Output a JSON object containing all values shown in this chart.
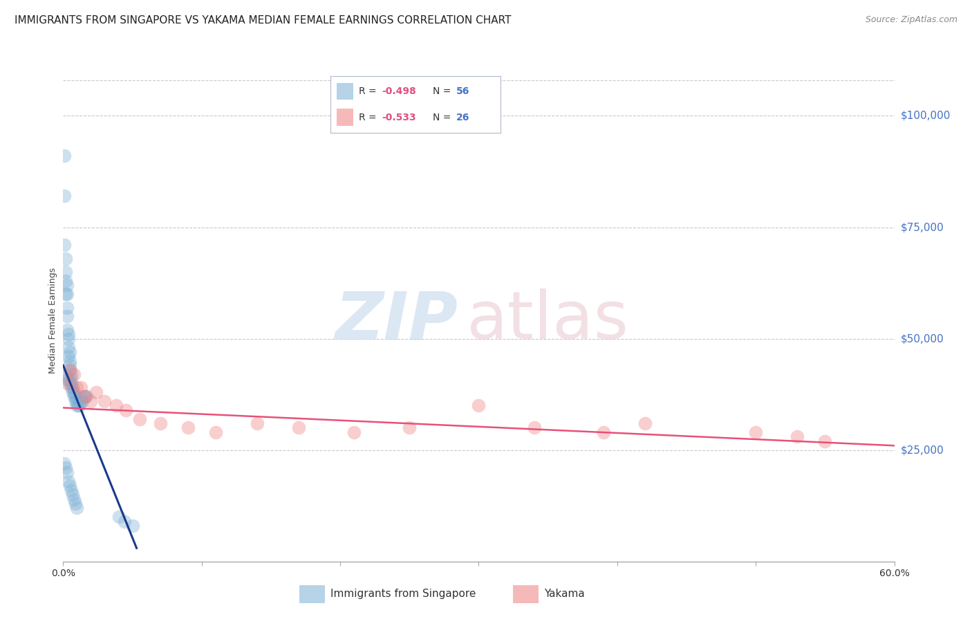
{
  "title": "IMMIGRANTS FROM SINGAPORE VS YAKAMA MEDIAN FEMALE EARNINGS CORRELATION CHART",
  "source": "Source: ZipAtlas.com",
  "ylabel": "Median Female Earnings",
  "watermark_zip": "ZIP",
  "watermark_atlas": "atlas",
  "xlim": [
    0,
    0.6
  ],
  "ylim": [
    0,
    108000
  ],
  "xticks": [
    0.0,
    0.1,
    0.2,
    0.3,
    0.4,
    0.5,
    0.6
  ],
  "xtick_labels": [
    "0.0%",
    "",
    "",
    "",
    "",
    "",
    "60.0%"
  ],
  "ytick_values": [
    25000,
    50000,
    75000,
    100000
  ],
  "ytick_labels": [
    "$25,000",
    "$50,000",
    "$75,000",
    "$100,000"
  ],
  "ytick_color": "#4472c4",
  "background_color": "#ffffff",
  "grid_color": "#c8c8d0",
  "sg_color": "#7bafd4",
  "yk_color": "#f08080",
  "sg_line_color": "#1a3a8a",
  "yk_line_color": "#e8507a",
  "R_color": "#e05080",
  "N_color": "#4472c4",
  "singapore_x": [
    0.001,
    0.001,
    0.001,
    0.002,
    0.002,
    0.002,
    0.002,
    0.003,
    0.003,
    0.003,
    0.003,
    0.003,
    0.004,
    0.004,
    0.004,
    0.004,
    0.005,
    0.005,
    0.005,
    0.005,
    0.006,
    0.006,
    0.006,
    0.007,
    0.007,
    0.008,
    0.008,
    0.009,
    0.009,
    0.01,
    0.01,
    0.011,
    0.012,
    0.013,
    0.014,
    0.015,
    0.016,
    0.017,
    0.002,
    0.003,
    0.004,
    0.005,
    0.006,
    0.001,
    0.002,
    0.003,
    0.004,
    0.005,
    0.006,
    0.007,
    0.008,
    0.009,
    0.01,
    0.04,
    0.044,
    0.05
  ],
  "singapore_y": [
    91000,
    82000,
    71000,
    68000,
    65000,
    63000,
    60000,
    62000,
    60000,
    57000,
    55000,
    52000,
    51000,
    50000,
    48000,
    46000,
    47000,
    45000,
    44000,
    43000,
    42000,
    41000,
    40000,
    39000,
    38000,
    38000,
    37000,
    37000,
    36000,
    36000,
    35000,
    35000,
    35000,
    36000,
    36000,
    37000,
    37000,
    37000,
    42000,
    41000,
    41000,
    40000,
    39000,
    22000,
    21000,
    20000,
    18000,
    17000,
    16000,
    15000,
    14000,
    13000,
    12000,
    10000,
    9000,
    8000
  ],
  "yakama_x": [
    0.003,
    0.005,
    0.008,
    0.01,
    0.013,
    0.016,
    0.02,
    0.024,
    0.03,
    0.038,
    0.045,
    0.055,
    0.07,
    0.09,
    0.11,
    0.14,
    0.17,
    0.21,
    0.25,
    0.3,
    0.34,
    0.39,
    0.42,
    0.5,
    0.53,
    0.55
  ],
  "yakama_y": [
    40000,
    43000,
    42000,
    39000,
    39000,
    37000,
    36000,
    38000,
    36000,
    35000,
    34000,
    32000,
    31000,
    30000,
    29000,
    31000,
    30000,
    29000,
    30000,
    35000,
    30000,
    29000,
    31000,
    29000,
    28000,
    27000
  ],
  "singapore_line_x": [
    0.0,
    0.053
  ],
  "singapore_line_y": [
    44000,
    3000
  ],
  "yakama_line_x": [
    0.0,
    0.6
  ],
  "yakama_line_y": [
    34500,
    26000
  ],
  "title_fontsize": 11,
  "axis_label_fontsize": 9,
  "tick_fontsize": 10,
  "scatter_size": 200,
  "scatter_alpha": 0.38,
  "sg_R": "-0.498",
  "sg_N": "56",
  "yk_R": "-0.533",
  "yk_N": "26",
  "sg_label": "Immigrants from Singapore",
  "yk_label": "Yakama"
}
